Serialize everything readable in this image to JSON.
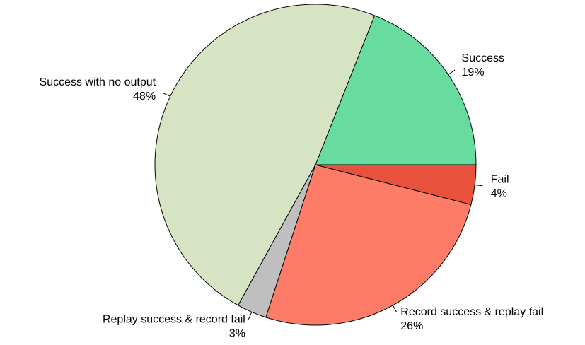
{
  "chart_data": {
    "type": "pie",
    "categories": [
      "Success",
      "Success with no output",
      "Replay success & record fail",
      "Record success & replay fail",
      "Fail"
    ],
    "values": [
      19,
      48,
      3,
      26,
      4
    ],
    "value_labels": [
      "19%",
      "48%",
      "3%",
      "26%",
      "4%"
    ],
    "colors": [
      "#68dc9e",
      "#d7e4c4",
      "#bfbfbf",
      "#fd7c68",
      "#e8513b"
    ]
  }
}
